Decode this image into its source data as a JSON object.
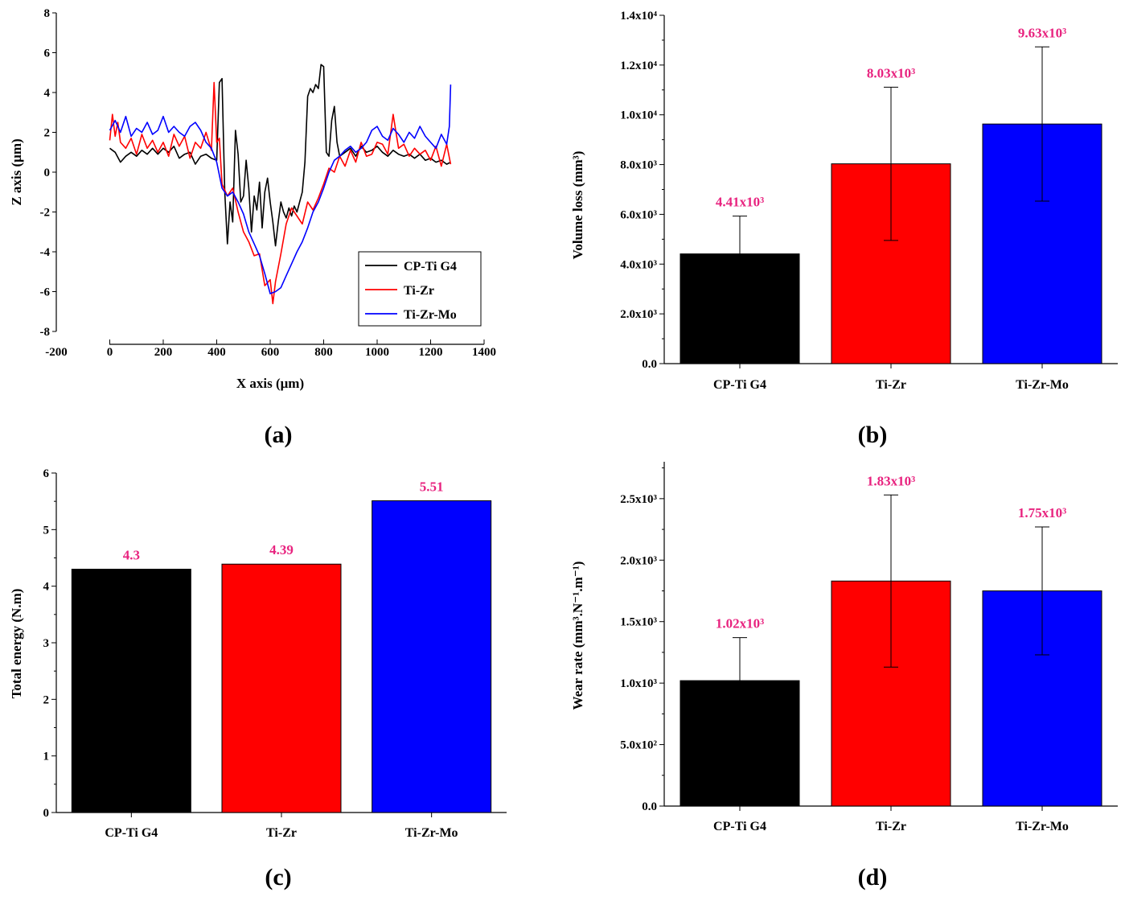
{
  "colors": {
    "series1": "#000000",
    "series2": "#ff0000",
    "series3": "#0000ff",
    "label": "#e8237f"
  },
  "chart_data": [
    {
      "panel": "(a)",
      "type": "line",
      "xlabel": "X axis (μm)",
      "ylabel": "Z axis (μm)",
      "xlim": [
        -200,
        1400
      ],
      "ylim": [
        -8,
        8
      ],
      "xticks": [
        "-200",
        "0",
        "200",
        "400",
        "600",
        "800",
        "1000",
        "1200",
        "1400"
      ],
      "yticks": [
        "-8",
        "-6",
        "-4",
        "-2",
        "0",
        "2",
        "4",
        "6",
        "8"
      ],
      "legend_position": "bottom-right",
      "series": [
        {
          "name": "CP-Ti G4",
          "color": "#000000",
          "x": [
            0,
            20,
            40,
            60,
            80,
            100,
            120,
            140,
            160,
            180,
            200,
            220,
            240,
            260,
            280,
            300,
            320,
            340,
            360,
            380,
            400,
            410,
            420,
            430,
            440,
            450,
            460,
            470,
            480,
            490,
            500,
            510,
            520,
            530,
            540,
            550,
            560,
            570,
            580,
            590,
            600,
            610,
            620,
            630,
            640,
            650,
            660,
            670,
            680,
            690,
            700,
            710,
            720,
            730,
            740,
            750,
            760,
            770,
            780,
            790,
            800,
            810,
            820,
            830,
            840,
            850,
            860,
            880,
            900,
            920,
            940,
            960,
            980,
            1000,
            1020,
            1040,
            1060,
            1080,
            1100,
            1120,
            1140,
            1160,
            1180,
            1200,
            1220,
            1240,
            1260,
            1275
          ],
          "y": [
            1.2,
            1.0,
            0.5,
            0.8,
            1.0,
            0.8,
            1.1,
            0.9,
            1.2,
            0.9,
            1.2,
            1.0,
            1.3,
            0.7,
            0.9,
            1.0,
            0.4,
            0.8,
            0.9,
            0.7,
            0.6,
            4.5,
            4.7,
            -1.0,
            -3.6,
            -1.5,
            -2.5,
            2.1,
            0.9,
            -1.5,
            -1.2,
            0.6,
            -0.8,
            -3.0,
            -1.2,
            -1.9,
            -0.5,
            -2.8,
            -1.0,
            -0.3,
            -1.5,
            -2.5,
            -3.7,
            -2.5,
            -1.5,
            -2.0,
            -2.3,
            -1.8,
            -2.2,
            -1.7,
            -2.0,
            -1.5,
            -1.0,
            0.5,
            3.8,
            4.2,
            4.0,
            4.4,
            4.2,
            5.4,
            5.3,
            1.0,
            0.8,
            2.6,
            3.3,
            1.5,
            0.8,
            1.0,
            1.2,
            0.8,
            1.3,
            1.0,
            1.1,
            1.3,
            1.0,
            0.8,
            1.1,
            0.9,
            0.8,
            0.9,
            0.7,
            0.9,
            0.6,
            0.7,
            0.5,
            0.6,
            0.4,
            0.5
          ]
        },
        {
          "name": "Ti-Zr",
          "color": "#ff0000",
          "x": [
            0,
            10,
            20,
            30,
            40,
            60,
            80,
            100,
            120,
            140,
            160,
            180,
            200,
            220,
            240,
            260,
            280,
            300,
            320,
            340,
            360,
            380,
            390,
            400,
            410,
            420,
            440,
            460,
            480,
            500,
            520,
            540,
            560,
            580,
            600,
            610,
            620,
            640,
            660,
            680,
            700,
            720,
            740,
            760,
            780,
            800,
            820,
            840,
            860,
            880,
            900,
            920,
            940,
            960,
            980,
            1000,
            1020,
            1040,
            1060,
            1080,
            1100,
            1120,
            1140,
            1160,
            1180,
            1200,
            1220,
            1240,
            1260,
            1275
          ],
          "y": [
            1.6,
            2.9,
            1.8,
            2.5,
            1.5,
            1.2,
            1.7,
            0.9,
            1.9,
            1.2,
            1.6,
            1.0,
            1.5,
            0.8,
            1.9,
            1.3,
            1.8,
            0.7,
            1.5,
            1.2,
            2.0,
            1.1,
            4.5,
            1.5,
            1.7,
            -0.6,
            -1.2,
            -0.8,
            -2.0,
            -3.0,
            -3.5,
            -4.2,
            -4.1,
            -5.7,
            -5.4,
            -6.6,
            -5.5,
            -4.1,
            -2.6,
            -1.8,
            -2.2,
            -2.6,
            -1.5,
            -1.9,
            -1.3,
            -0.6,
            0.2,
            0.0,
            0.8,
            0.3,
            1.1,
            0.5,
            1.5,
            0.8,
            0.9,
            1.5,
            1.4,
            0.9,
            2.9,
            1.2,
            1.4,
            0.8,
            1.2,
            0.9,
            1.1,
            0.6,
            1.3,
            0.3,
            1.4,
            0.4
          ]
        },
        {
          "name": "Ti-Zr-Mo",
          "color": "#0000ff",
          "x": [
            0,
            20,
            40,
            60,
            80,
            100,
            120,
            140,
            160,
            180,
            200,
            220,
            240,
            260,
            280,
            300,
            320,
            340,
            360,
            380,
            400,
            420,
            440,
            460,
            480,
            500,
            520,
            540,
            560,
            580,
            600,
            620,
            640,
            660,
            680,
            700,
            720,
            740,
            760,
            780,
            800,
            820,
            840,
            860,
            880,
            900,
            920,
            940,
            960,
            980,
            1000,
            1020,
            1040,
            1060,
            1080,
            1100,
            1120,
            1140,
            1160,
            1180,
            1200,
            1220,
            1240,
            1260,
            1270,
            1275
          ],
          "y": [
            2.1,
            2.6,
            2.0,
            2.8,
            1.8,
            2.2,
            2.0,
            2.5,
            1.9,
            2.1,
            2.8,
            2.0,
            2.3,
            2.0,
            1.8,
            2.3,
            2.5,
            2.1,
            1.5,
            1.2,
            0.5,
            -0.8,
            -1.2,
            -1.0,
            -1.5,
            -2.1,
            -3.0,
            -3.6,
            -4.2,
            -5.1,
            -6.1,
            -6.0,
            -5.8,
            -5.2,
            -4.6,
            -4.0,
            -3.5,
            -2.8,
            -2.0,
            -1.5,
            -0.8,
            0.0,
            0.6,
            0.8,
            1.1,
            1.3,
            1.0,
            1.2,
            1.5,
            2.1,
            2.3,
            1.8,
            1.6,
            2.2,
            1.9,
            1.5,
            2.0,
            1.7,
            2.3,
            1.8,
            1.5,
            1.2,
            1.9,
            1.4,
            2.3,
            4.4
          ]
        }
      ]
    },
    {
      "panel": "(b)",
      "type": "bar",
      "ylabel": "Volume loss (mm³)",
      "categories": [
        "CP-Ti G4",
        "Ti-Zr",
        "Ti-Zr-Mo"
      ],
      "values": [
        4410,
        8030,
        9630
      ],
      "errors": [
        1520,
        3080,
        3100
      ],
      "labels": [
        "4.41x10³",
        "8.03x10³",
        "9.63x10³"
      ],
      "ylim": [
        0,
        14000
      ],
      "yticks": [
        "0.0",
        "2.0x10³",
        "4.0x10³",
        "6.0x10³",
        "8.0x10³",
        "1.0x10⁴",
        "1.2x10⁴",
        "1.4x10⁴"
      ]
    },
    {
      "panel": "(c)",
      "type": "bar",
      "ylabel": "Total energy (N.m)",
      "categories": [
        "CP-Ti G4",
        "Ti-Zr",
        "Ti-Zr-Mo"
      ],
      "values": [
        4.3,
        4.39,
        5.51
      ],
      "labels": [
        "4.3",
        "4.39",
        "5.51"
      ],
      "ylim": [
        0,
        6
      ],
      "yticks": [
        "0",
        "1",
        "2",
        "3",
        "4",
        "5",
        "6"
      ]
    },
    {
      "panel": "(d)",
      "type": "bar",
      "ylabel": "Wear rate (mm³.N⁻¹.m⁻¹)",
      "categories": [
        "CP-Ti G4",
        "Ti-Zr",
        "Ti-Zr-Mo"
      ],
      "values": [
        1020,
        1830,
        1750
      ],
      "errors": [
        350,
        700,
        520
      ],
      "labels": [
        "1.02x10³",
        "1.83x10³",
        "1.75x10³"
      ],
      "ylim": [
        0,
        2800
      ],
      "yticks": [
        "0.0",
        "5.0x10²",
        "1.0x10³",
        "1.5x10³",
        "2.0x10³",
        "2.5x10³"
      ]
    }
  ]
}
